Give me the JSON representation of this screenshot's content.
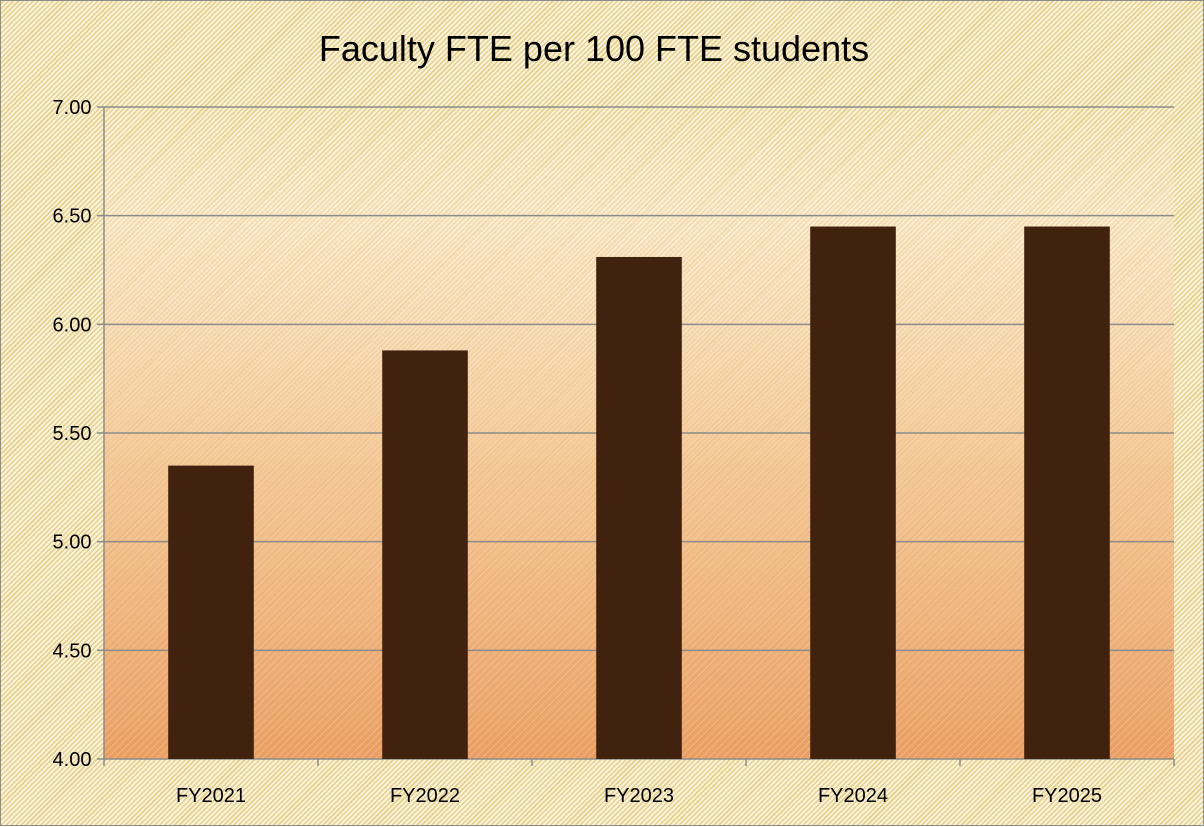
{
  "chart_data": {
    "type": "bar",
    "title": "Faculty FTE per 100 FTE students",
    "xlabel": "",
    "ylabel": "",
    "categories": [
      "FY2021",
      "FY2022",
      "FY2023",
      "FY2024",
      "FY2025"
    ],
    "values": [
      5.35,
      5.88,
      6.31,
      6.45,
      6.45
    ],
    "ylim": [
      4.0,
      7.0
    ],
    "yticks": [
      "4.00",
      "4.50",
      "5.00",
      "5.50",
      "6.00",
      "6.50",
      "7.00"
    ],
    "grid": true,
    "legend": "none",
    "colors": {
      "bar": "#41220e",
      "gridline": "#8c8c8c",
      "plot_gradient_top": "#fbe9cf",
      "plot_gradient_bottom": "#e99a5f"
    }
  }
}
